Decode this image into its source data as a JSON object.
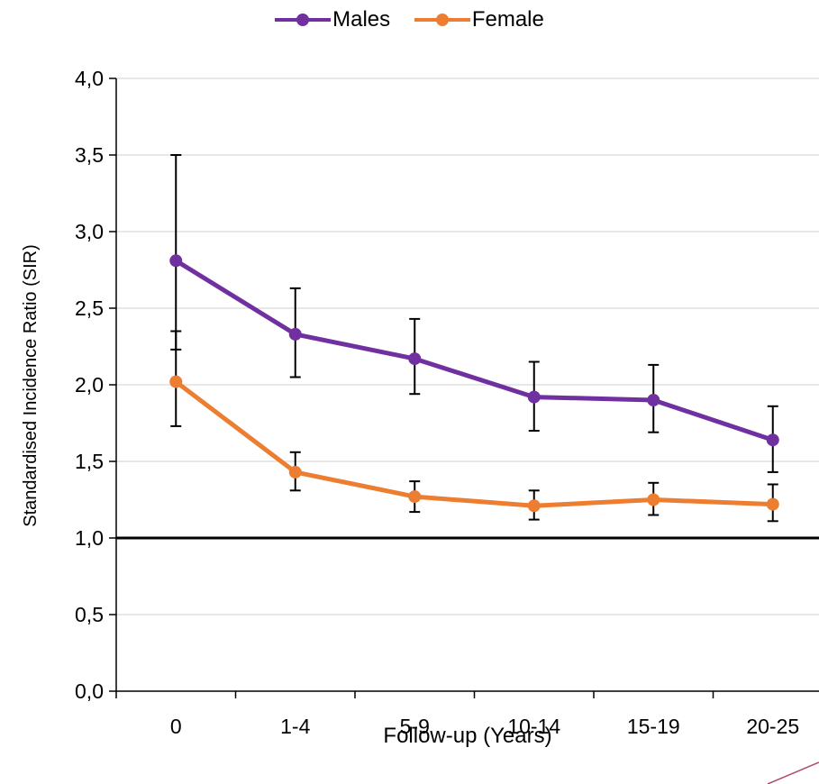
{
  "chart_data": {
    "type": "line",
    "xlabel": "Follow-up (Years)",
    "ylabel": "Standardised Incidence Ratio (SIR)",
    "categories": [
      "0",
      "1-4",
      "5-9",
      "10-14",
      "15-19",
      "20-25"
    ],
    "ylim": [
      0,
      4
    ],
    "yticks": [
      "0,0",
      "0,5",
      "1,0",
      "1,5",
      "2,0",
      "2,5",
      "3,0",
      "3,5",
      "4,0"
    ],
    "reference_line": 1.0,
    "grid": true,
    "legend_position": "top-center",
    "series": [
      {
        "name": "Males",
        "color": "#7030A0",
        "values": [
          2.81,
          2.33,
          2.17,
          1.92,
          1.9,
          1.64
        ],
        "err_low": [
          2.23,
          2.05,
          1.94,
          1.7,
          1.69,
          1.43
        ],
        "err_high": [
          3.5,
          2.63,
          2.43,
          2.15,
          2.13,
          1.86
        ]
      },
      {
        "name": "Female",
        "color": "#ED7D31",
        "values": [
          2.02,
          1.43,
          1.27,
          1.21,
          1.25,
          1.22
        ],
        "err_low": [
          1.73,
          1.31,
          1.17,
          1.12,
          1.15,
          1.11
        ],
        "err_high": [
          2.35,
          1.56,
          1.37,
          1.31,
          1.36,
          1.35
        ]
      }
    ]
  }
}
